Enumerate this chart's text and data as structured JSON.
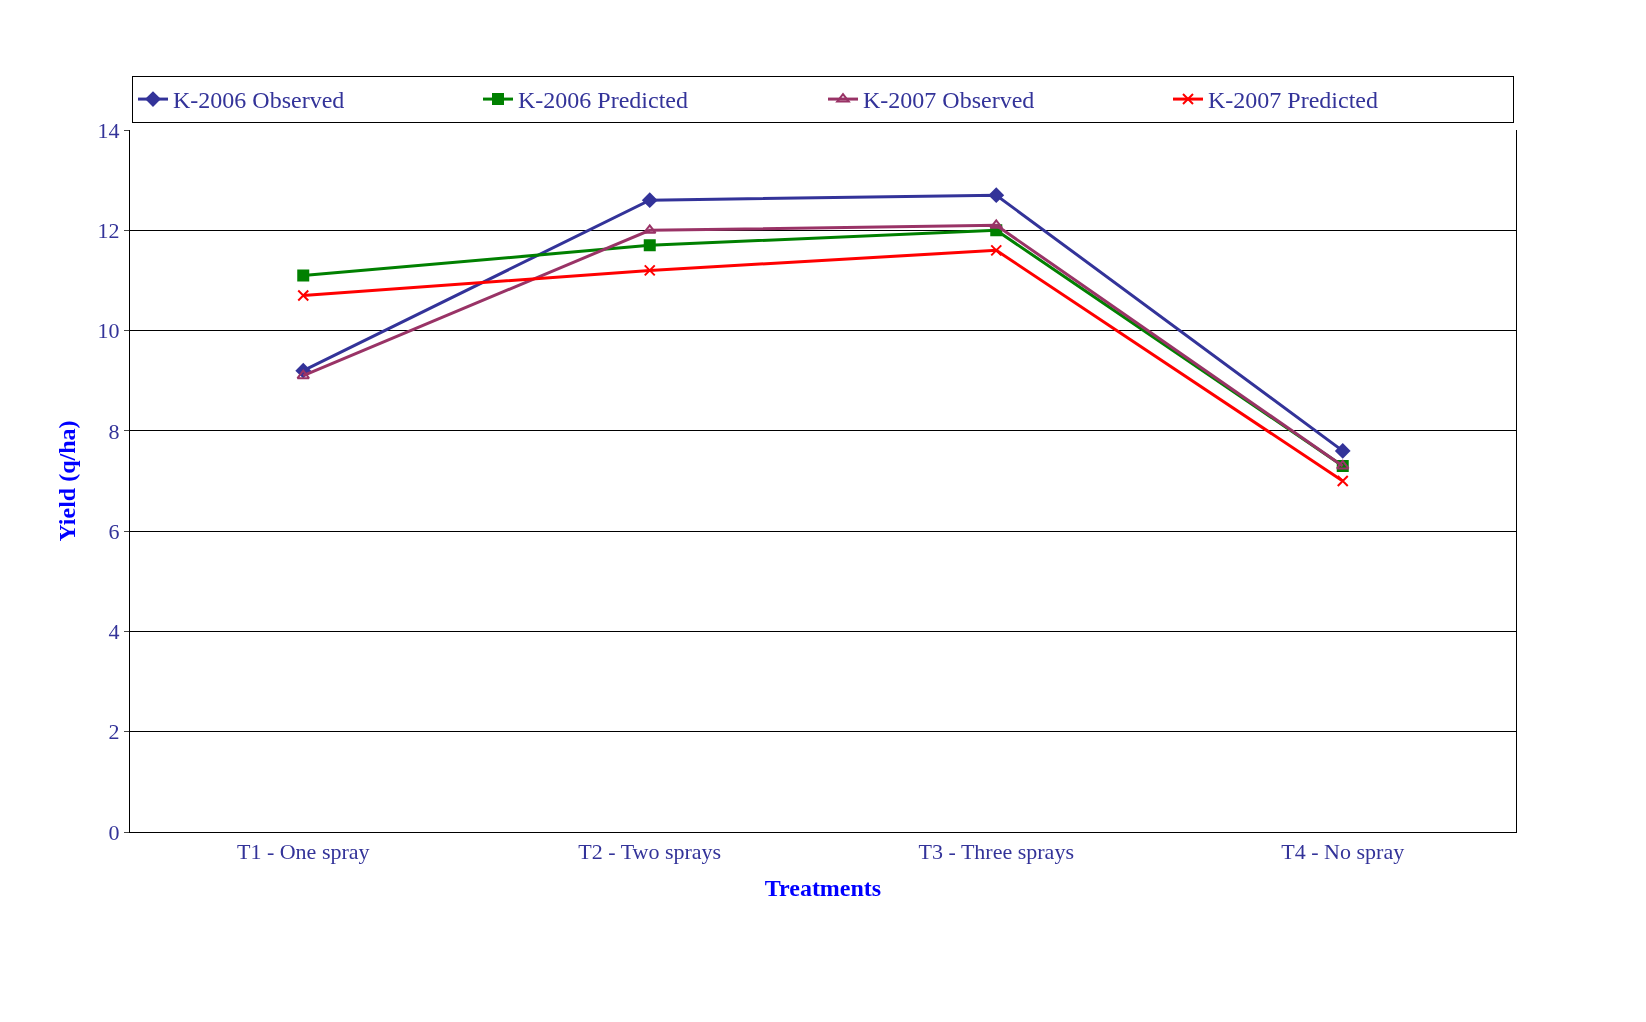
{
  "chart_data": {
    "type": "line",
    "xlabel": "Treatments",
    "ylabel": "Yield (q/ha)",
    "categories": [
      "T1 - One spray",
      "T2 - Two sprays",
      "T3 - Three sprays",
      "T4 - No spray"
    ],
    "series": [
      {
        "name": "K-2006 Observed",
        "color": "#333399",
        "marker": "diamond",
        "values": [
          9.2,
          12.6,
          12.7,
          7.6
        ]
      },
      {
        "name": "K-2006 Predicted",
        "color": "#008000",
        "marker": "square",
        "values": [
          11.1,
          11.7,
          12.0,
          7.3
        ]
      },
      {
        "name": "K-2007 Observed",
        "color": "#993366",
        "marker": "triangle",
        "values": [
          9.1,
          12.0,
          12.1,
          7.3
        ]
      },
      {
        "name": "K-2007 Predicted",
        "color": "#ff0000",
        "marker": "cross",
        "values": [
          10.7,
          11.2,
          11.6,
          7.0
        ]
      }
    ],
    "ylim": [
      0,
      14
    ],
    "yticks": [
      0,
      2,
      4,
      6,
      8,
      10,
      12,
      14
    ],
    "grid": "y",
    "legend": "top",
    "line_style": "solid"
  }
}
